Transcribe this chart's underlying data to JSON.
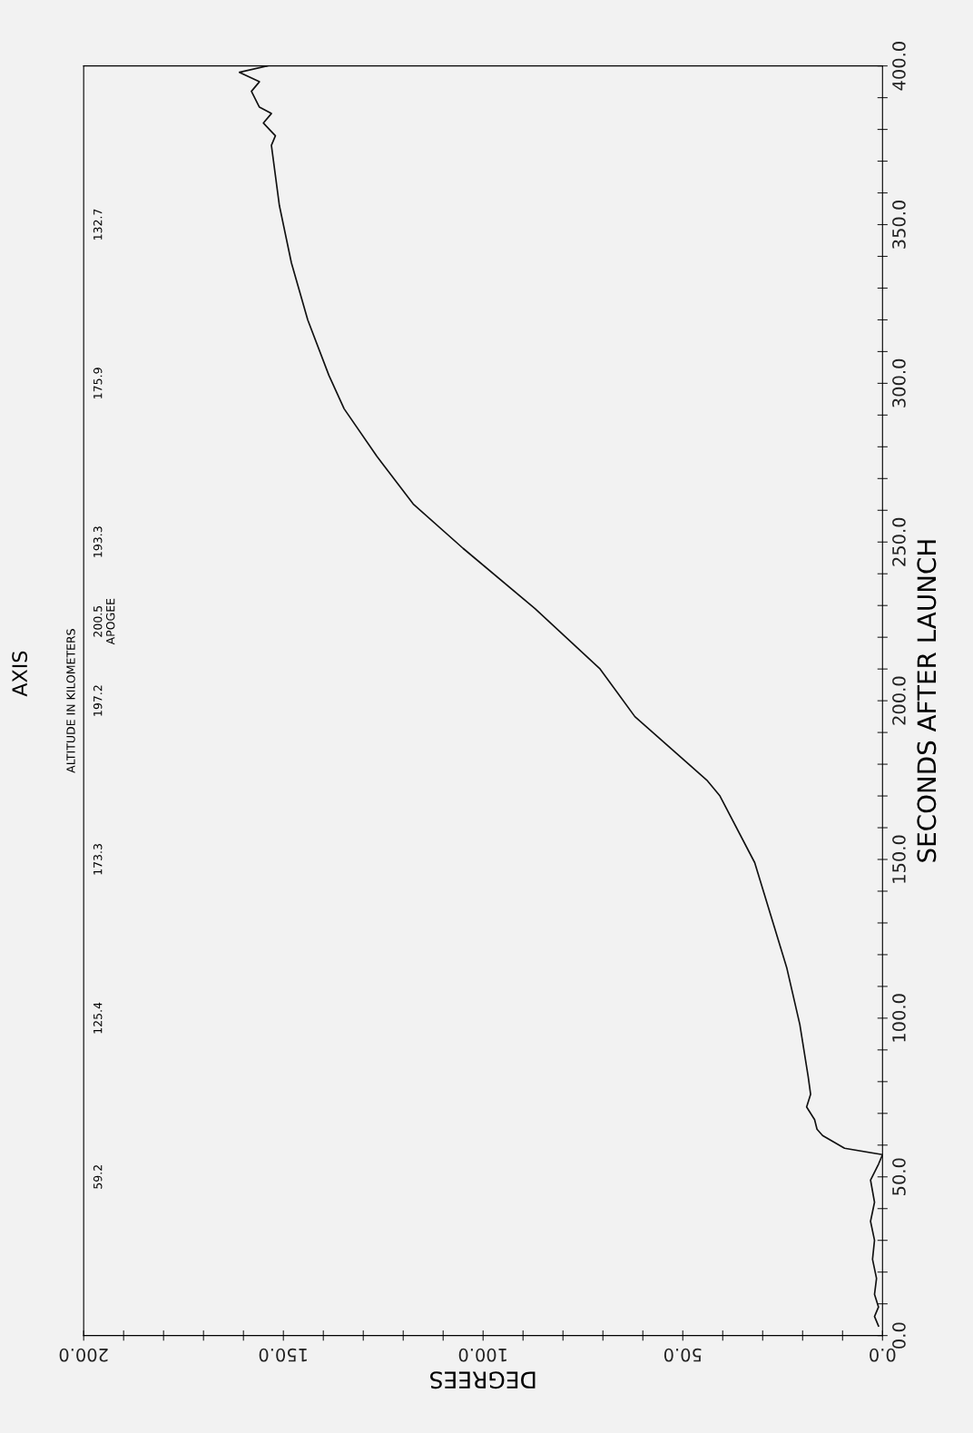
{
  "chart_data": {
    "type": "line",
    "title": "AXIS",
    "xlabel": "DEGREES",
    "ylabel": "SECONDS AFTER LAUNCH",
    "annotations": [
      "ALTITUDE IN KILOMETERS",
      "59.2",
      "125.4",
      "173.3",
      "197.2",
      "200.5\nAPOGEE",
      "193.3",
      "175.9",
      "132.7"
    ],
    "xlim": [
      200,
      0
    ],
    "ylim": [
      0,
      400
    ],
    "xticks": [
      {
        "value": 0,
        "label": "0.0"
      },
      {
        "value": 10,
        "label": null
      },
      {
        "value": 20,
        "label": null
      },
      {
        "value": 30,
        "label": null
      },
      {
        "value": 40,
        "label": null
      },
      {
        "value": 50,
        "label": "50.0"
      },
      {
        "value": 60,
        "label": null
      },
      {
        "value": 70,
        "label": null
      },
      {
        "value": 80,
        "label": null
      },
      {
        "value": 90,
        "label": null
      },
      {
        "value": 100,
        "label": "100.0"
      },
      {
        "value": 110,
        "label": null
      },
      {
        "value": 120,
        "label": null
      },
      {
        "value": 130,
        "label": null
      },
      {
        "value": 140,
        "label": null
      },
      {
        "value": 150,
        "label": "150.0"
      },
      {
        "value": 160,
        "label": null
      },
      {
        "value": 170,
        "label": null
      },
      {
        "value": 180,
        "label": null
      },
      {
        "value": 190,
        "label": null
      },
      {
        "value": 200,
        "label": "200.0"
      }
    ],
    "yticks": [
      {
        "value": 0,
        "label": "0.0"
      },
      {
        "value": 10,
        "label": null
      },
      {
        "value": 20,
        "label": null
      },
      {
        "value": 30,
        "label": null
      },
      {
        "value": 40,
        "label": null
      },
      {
        "value": 50,
        "label": "50.0"
      },
      {
        "value": 60,
        "label": null
      },
      {
        "value": 70,
        "label": null
      },
      {
        "value": 80,
        "label": null
      },
      {
        "value": 90,
        "label": null
      },
      {
        "value": 100,
        "label": "100.0"
      },
      {
        "value": 110,
        "label": null
      },
      {
        "value": 120,
        "label": null
      },
      {
        "value": 130,
        "label": null
      },
      {
        "value": 140,
        "label": null
      },
      {
        "value": 150,
        "label": "150.0"
      },
      {
        "value": 160,
        "label": null
      },
      {
        "value": 170,
        "label": null
      },
      {
        "value": 180,
        "label": null
      },
      {
        "value": 190,
        "label": null
      },
      {
        "value": 200,
        "label": "200.0"
      },
      {
        "value": 210,
        "label": null
      },
      {
        "value": 220,
        "label": null
      },
      {
        "value": 230,
        "label": null
      },
      {
        "value": 240,
        "label": null
      },
      {
        "value": 250,
        "label": "250.0"
      },
      {
        "value": 260,
        "label": null
      },
      {
        "value": 270,
        "label": null
      },
      {
        "value": 280,
        "label": null
      },
      {
        "value": 290,
        "label": null
      },
      {
        "value": 300,
        "label": "300.0"
      },
      {
        "value": 310,
        "label": null
      },
      {
        "value": 320,
        "label": null
      },
      {
        "value": 330,
        "label": null
      },
      {
        "value": 340,
        "label": null
      },
      {
        "value": 350,
        "label": "350.0"
      },
      {
        "value": 360,
        "label": null
      },
      {
        "value": 370,
        "label": null
      },
      {
        "value": 380,
        "label": null
      },
      {
        "value": 390,
        "label": null
      },
      {
        "value": 400,
        "label": "400.0"
      }
    ],
    "grid": false,
    "legend": false,
    "marker": "none",
    "line_style": "solid",
    "series": [
      {
        "color": "#111111",
        "x": [
          1,
          2,
          1,
          2,
          1.5,
          2.5,
          2,
          3,
          2,
          3,
          1,
          0,
          9.5,
          15,
          16.4,
          17,
          19,
          18,
          18.6,
          20.7,
          24,
          32,
          40.7,
          44,
          62,
          70.7,
          87,
          105,
          117.5,
          126.6,
          134.8,
          138.6,
          143.9,
          148,
          151,
          153,
          152,
          155,
          153,
          156,
          158,
          156,
          161,
          154
        ],
        "values": [
          3,
          6,
          9,
          13,
          18,
          24,
          30,
          36,
          42,
          49,
          54,
          57,
          59,
          63,
          65,
          68,
          72,
          76,
          81.5,
          98,
          116,
          149,
          170,
          175,
          195,
          210,
          229,
          248,
          262,
          277,
          292,
          302.5,
          320,
          338,
          356,
          375,
          378,
          382,
          385,
          387,
          392,
          395,
          398,
          400
        ]
      }
    ]
  }
}
